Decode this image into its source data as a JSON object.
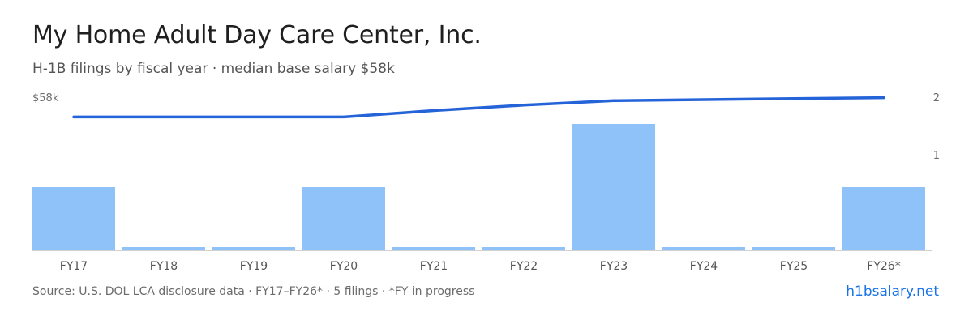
{
  "title": "My Home Adult Day Care Center,  Inc.",
  "subtitle": "H-1B filings by fiscal year · median base salary $58k",
  "footer": {
    "source": "Source: U.S. DOL LCA disclosure data · FY17–FY26* · 5 filings · *FY in progress",
    "brand": "h1bsalary.net"
  },
  "colors": {
    "bar": "#90c2fa",
    "line": "#2563d9",
    "baseline": "#d0d0d0"
  },
  "chart_data": {
    "type": "bar",
    "categories": [
      "FY17",
      "FY18",
      "FY19",
      "FY20",
      "FY21",
      "FY22",
      "FY23",
      "FY24",
      "FY25",
      "FY26*"
    ],
    "series": [
      {
        "values": [
          1,
          0,
          0,
          1,
          0,
          0,
          2,
          0,
          0,
          1
        ]
      }
    ],
    "line_series": {
      "values": [
        54,
        54,
        54,
        54,
        55.3,
        56.4,
        57.3,
        57.5,
        57.7,
        57.9
      ]
    },
    "left_axis_label": "$58k",
    "right_axis_ticks": [
      "2",
      "1"
    ],
    "right_ylim": [
      0,
      2
    ],
    "left_ylim": [
      27,
      58
    ],
    "grid": false
  }
}
